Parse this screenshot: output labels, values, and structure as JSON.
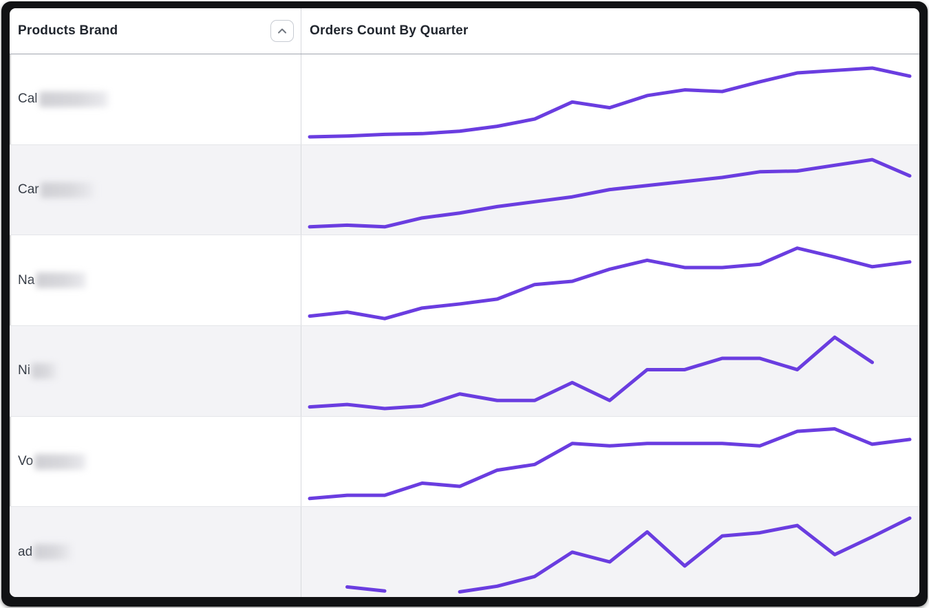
{
  "header": {
    "col1_title": "Products Brand",
    "col2_title": "Orders Count By Quarter",
    "sort_icon": "chevron-up-icon",
    "sort_direction": "asc"
  },
  "colors": {
    "accent_line": "#6a3de0",
    "alt_row_bg": "#f3f3f6",
    "header_divider": "#9fa4ae",
    "column_divider": "#d7d9dd",
    "frame": "#111214"
  },
  "rows": [
    {
      "label_visible": "Cal",
      "label_redacted": true,
      "redact_width": 104
    },
    {
      "label_visible": "Car",
      "label_redacted": true,
      "redact_width": 80
    },
    {
      "label_visible": "Na",
      "label_redacted": true,
      "redact_width": 76
    },
    {
      "label_visible": "Ni",
      "label_redacted": true,
      "redact_width": 38
    },
    {
      "label_visible": "Vo",
      "label_redacted": true,
      "redact_width": 78
    },
    {
      "label_visible": "ad",
      "label_redacted": true,
      "redact_width": 56
    }
  ],
  "chart_data": {
    "type": "line",
    "title": "Orders Count By Quarter",
    "xlabel": "",
    "ylabel": "",
    "x": [
      1,
      2,
      3,
      4,
      5,
      6,
      7,
      8,
      9,
      10,
      11,
      12,
      13,
      14,
      15,
      16,
      17
    ],
    "ylim": [
      0,
      100
    ],
    "grid": false,
    "legend_position": "none",
    "note_units": "relative orders count per brand, estimated from sparkline pixels; null = no data",
    "series": [
      {
        "name": "Cal",
        "values": [
          4,
          5,
          7,
          8,
          11,
          17,
          26,
          47,
          40,
          55,
          62,
          60,
          72,
          83,
          86,
          89,
          79
        ]
      },
      {
        "name": "Car",
        "values": [
          5,
          7,
          5,
          16,
          22,
          30,
          36,
          42,
          51,
          56,
          61,
          66,
          73,
          74,
          81,
          88,
          68
        ]
      },
      {
        "name": "Na",
        "values": [
          6,
          11,
          3,
          16,
          21,
          27,
          45,
          49,
          64,
          75,
          66,
          66,
          70,
          90,
          79,
          67,
          73
        ]
      },
      {
        "name": "Ni",
        "values": [
          6,
          9,
          4,
          7,
          22,
          14,
          14,
          36,
          14,
          52,
          52,
          66,
          66,
          52,
          92,
          61,
          null
        ]
      },
      {
        "name": "Vo",
        "values": [
          5,
          9,
          9,
          24,
          20,
          40,
          47,
          73,
          70,
          73,
          73,
          73,
          70,
          88,
          91,
          72,
          78
        ]
      },
      {
        "name": "ad",
        "values": [
          null,
          7,
          2,
          null,
          1,
          8,
          20,
          50,
          38,
          75,
          33,
          70,
          74,
          83,
          47,
          69,
          92
        ]
      }
    ]
  }
}
